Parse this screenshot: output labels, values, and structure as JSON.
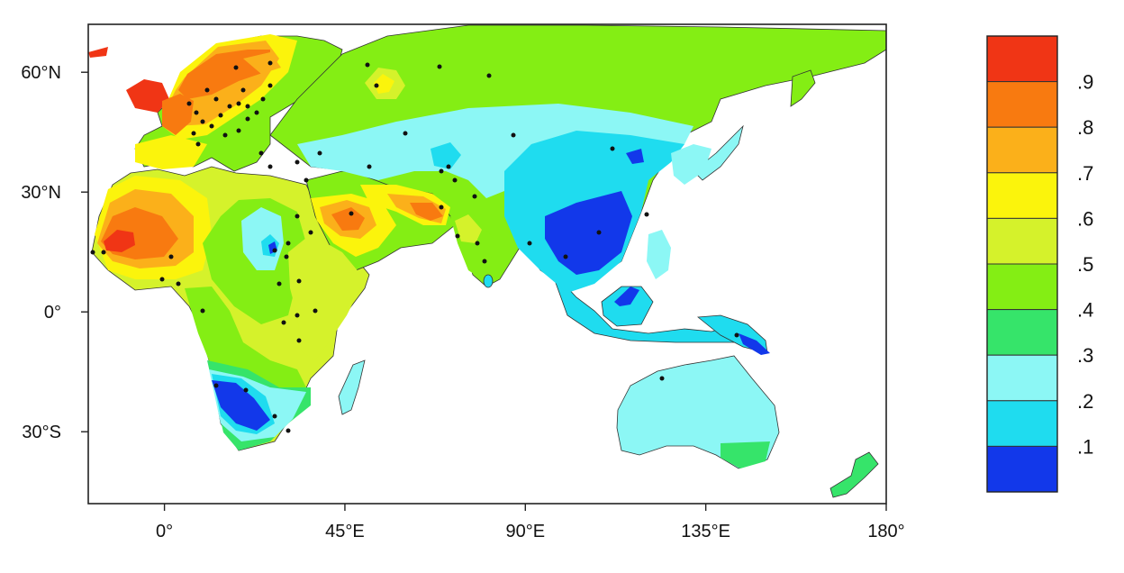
{
  "map": {
    "x_ticks": [
      {
        "lon": 0,
        "label": "0°"
      },
      {
        "lon": 45,
        "label": "45°E"
      },
      {
        "lon": 90,
        "label": "90°E"
      },
      {
        "lon": 135,
        "label": "135°E"
      },
      {
        "lon": 180,
        "label": "180°"
      }
    ],
    "y_ticks": [
      {
        "lat": 60,
        "label": "60°N"
      },
      {
        "lat": 30,
        "label": "30°N"
      },
      {
        "lat": 0,
        "label": "0°"
      },
      {
        "lat": -30,
        "label": "30°S"
      }
    ],
    "extent": {
      "lon": [
        -19,
        180
      ],
      "lat": [
        -48,
        72
      ]
    }
  },
  "colorbar": {
    "levels": [
      {
        "label": ".9",
        "color": "#f03515"
      },
      {
        "label": ".8",
        "color": "#f87a10"
      },
      {
        "label": ".7",
        "color": "#fbb01a"
      },
      {
        "label": ".6",
        "color": "#fbf40c"
      },
      {
        "label": ".5",
        "color": "#d5f22b"
      },
      {
        "label": ".4",
        "color": "#84ee14"
      },
      {
        "label": ".3",
        "color": "#36e46a"
      },
      {
        "label": ".2",
        "color": "#8cf7f5"
      },
      {
        "label": ".1",
        "color": "#1fdcef"
      },
      {
        "label": "",
        "color": "#1238ea"
      }
    ]
  }
}
